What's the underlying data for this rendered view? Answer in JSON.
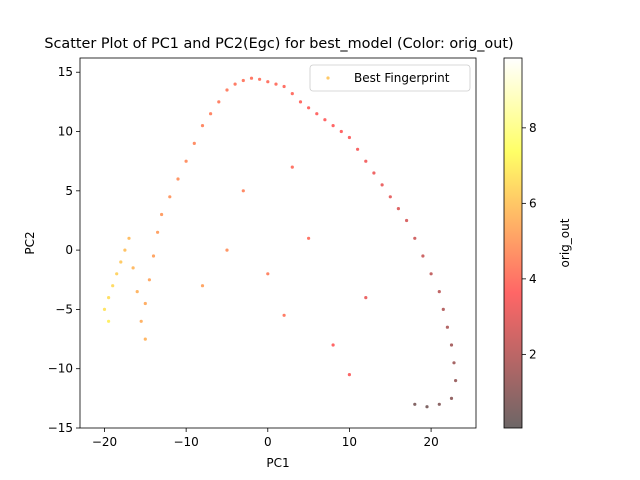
{
  "chart_data": {
    "type": "scatter",
    "title": "Scatter Plot of PC1 and PC2(Egc) for best_model (Color: orig_out)",
    "xlabel": "PC1",
    "ylabel": "PC2",
    "xlim": [
      -23.0,
      25.5
    ],
    "ylim": [
      -15,
      16.2
    ],
    "xticks": [
      -20,
      -10,
      0,
      10,
      20
    ],
    "yticks": [
      -15,
      -10,
      -5,
      0,
      5,
      10,
      15
    ],
    "grid": false,
    "legend": {
      "placement": "top-right",
      "entries": [
        "Best Fingerprint"
      ]
    },
    "colorbar": {
      "label": "orig_out",
      "range": [
        0.05,
        9.85
      ],
      "ticks": [
        2,
        4,
        6,
        8
      ],
      "colormap": "hot",
      "alpha": 0.6
    },
    "series": [
      {
        "name": "Best Fingerprint",
        "point_columns": [
          "pc1",
          "pc2",
          "orig_out"
        ],
        "points": [
          [
            -20.0,
            -5.0,
            6.7
          ],
          [
            -19.5,
            -4.0,
            6.6
          ],
          [
            -19.0,
            -3.0,
            6.5
          ],
          [
            -18.5,
            -2.0,
            6.3
          ],
          [
            -18.0,
            -1.0,
            6.1
          ],
          [
            -17.5,
            0.0,
            5.9
          ],
          [
            -17.0,
            1.0,
            5.8
          ],
          [
            -16.5,
            -1.5,
            5.7
          ],
          [
            -16.0,
            -3.5,
            5.6
          ],
          [
            -15.5,
            -6.0,
            5.5
          ],
          [
            -15.0,
            -4.5,
            5.4
          ],
          [
            -14.5,
            -2.5,
            5.3
          ],
          [
            -14.0,
            -0.5,
            5.2
          ],
          [
            -13.5,
            1.5,
            5.1
          ],
          [
            -13.0,
            3.0,
            5.0
          ],
          [
            -12.0,
            4.5,
            4.9
          ],
          [
            -11.0,
            6.0,
            4.8
          ],
          [
            -10.0,
            7.5,
            4.7
          ],
          [
            -9.0,
            9.0,
            4.6
          ],
          [
            -8.0,
            10.5,
            4.5
          ],
          [
            -7.0,
            11.5,
            4.4
          ],
          [
            -6.0,
            12.5,
            4.3
          ],
          [
            -5.0,
            13.5,
            4.3
          ],
          [
            -4.0,
            14.0,
            4.2
          ],
          [
            -3.0,
            14.3,
            4.2
          ],
          [
            -2.0,
            14.5,
            4.1
          ],
          [
            -1.0,
            14.4,
            4.1
          ],
          [
            0.0,
            14.2,
            4.0
          ],
          [
            1.0,
            14.0,
            4.0
          ],
          [
            2.0,
            13.8,
            3.9
          ],
          [
            3.0,
            13.2,
            3.9
          ],
          [
            4.0,
            12.5,
            3.8
          ],
          [
            5.0,
            12.0,
            3.7
          ],
          [
            6.0,
            11.5,
            3.7
          ],
          [
            7.0,
            11.0,
            3.6
          ],
          [
            8.0,
            10.5,
            3.5
          ],
          [
            9.0,
            10.0,
            3.5
          ],
          [
            10.0,
            9.5,
            3.4
          ],
          [
            11.0,
            8.5,
            3.3
          ],
          [
            12.0,
            7.5,
            3.2
          ],
          [
            13.0,
            6.5,
            3.1
          ],
          [
            14.0,
            5.5,
            3.0
          ],
          [
            15.0,
            4.5,
            2.9
          ],
          [
            16.0,
            3.5,
            2.7
          ],
          [
            17.0,
            2.5,
            2.6
          ],
          [
            18.0,
            1.0,
            2.4
          ],
          [
            19.0,
            -0.5,
            2.3
          ],
          [
            20.0,
            -2.0,
            2.1
          ],
          [
            21.0,
            -3.5,
            2.0
          ],
          [
            21.5,
            -5.0,
            1.8
          ],
          [
            22.0,
            -6.5,
            1.7
          ],
          [
            22.5,
            -8.0,
            1.5
          ],
          [
            22.8,
            -9.5,
            1.4
          ],
          [
            23.0,
            -11.0,
            1.2
          ],
          [
            22.5,
            -12.5,
            1.0
          ],
          [
            21.0,
            -13.0,
            0.8
          ],
          [
            18.0,
            -13.0,
            0.6
          ],
          [
            19.5,
            -13.2,
            0.5
          ],
          [
            -5.0,
            0.0,
            4.8
          ],
          [
            0.0,
            -2.0,
            4.4
          ],
          [
            5.0,
            1.0,
            4.0
          ],
          [
            8.0,
            -8.0,
            3.6
          ],
          [
            10.0,
            -10.5,
            3.4
          ],
          [
            -8.0,
            -3.0,
            5.2
          ],
          [
            2.0,
            -5.5,
            4.2
          ],
          [
            12.0,
            -4.0,
            3.0
          ],
          [
            -3.0,
            5.0,
            4.5
          ],
          [
            3.0,
            7.0,
            4.0
          ],
          [
            -15.0,
            -7.5,
            5.6
          ],
          [
            -19.5,
            -6.0,
            7.0
          ]
        ]
      }
    ]
  }
}
